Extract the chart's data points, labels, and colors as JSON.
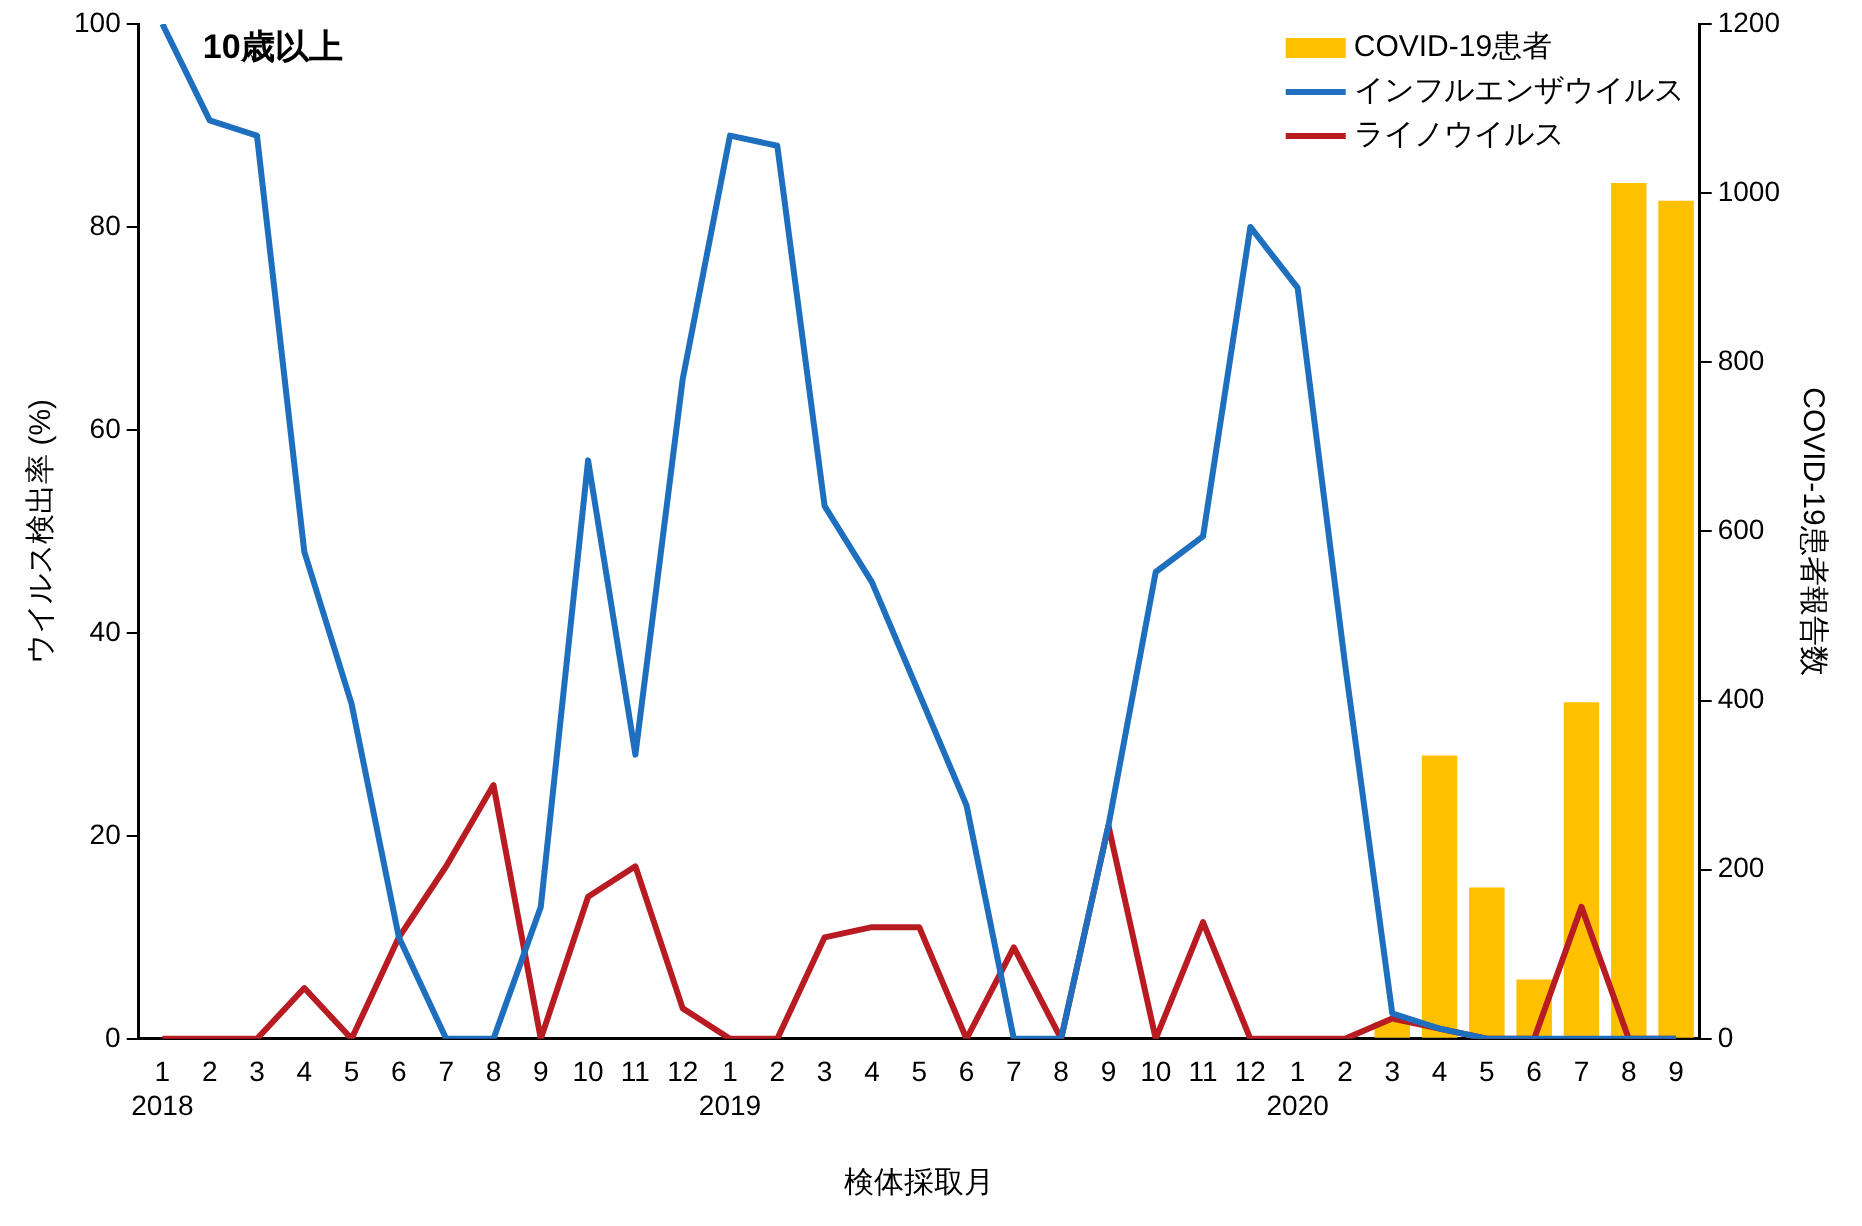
{
  "chart_data": {
    "type": "line",
    "xlabel": "検体採取月",
    "ylabel": "ウイルス検出率 (%)",
    "y2label": "COVID-19患者報告数",
    "annotations": [
      "10歳以上"
    ],
    "categories": [
      "1\n2018",
      "2",
      "3",
      "4",
      "5",
      "6",
      "7",
      "8",
      "9",
      "10",
      "11",
      "12",
      "1\n2019",
      "2",
      "3",
      "4",
      "5",
      "6",
      "7",
      "8",
      "9",
      "10",
      "11",
      "12",
      "1\n2020",
      "2",
      "3",
      "4",
      "5",
      "6",
      "7",
      "8",
      "9"
    ],
    "series": [
      {
        "name": "COVID-19患者",
        "type": "bar",
        "axis": "y2",
        "color": "#ffc000",
        "values": [
          null,
          null,
          null,
          null,
          null,
          null,
          null,
          null,
          null,
          null,
          null,
          null,
          null,
          null,
          null,
          null,
          null,
          null,
          null,
          null,
          null,
          null,
          null,
          null,
          null,
          null,
          20,
          335,
          179,
          70,
          398,
          1012,
          991
        ]
      },
      {
        "name": "インフルエンザウイルス",
        "color": "#1f6fbf",
        "values": [
          100,
          90.5,
          89,
          48,
          33,
          10,
          0,
          0,
          13,
          57,
          28,
          65,
          89,
          88,
          52.5,
          45,
          34,
          23,
          0,
          0,
          21,
          46,
          49.5,
          80,
          74,
          37,
          2.5,
          1,
          0,
          0,
          0,
          0,
          0
        ]
      },
      {
        "name": "ライノウイルス",
        "color": "#b81c22",
        "values": [
          0,
          0,
          0,
          5,
          0,
          10,
          17,
          25,
          0,
          14,
          17,
          3,
          0,
          0,
          10,
          11,
          11,
          0,
          9,
          0,
          21,
          0,
          11.5,
          0,
          0,
          0,
          2,
          1,
          0,
          0,
          13,
          0,
          0
        ]
      }
    ],
    "ylim": [
      0,
      100
    ],
    "yticks": [
      0,
      20,
      40,
      60,
      80,
      100
    ],
    "y2lim": [
      0,
      1200
    ],
    "y2ticks": [
      0,
      200,
      400,
      600,
      800,
      1000,
      1200
    ],
    "grid": false,
    "legend": "top right",
    "marker": "none"
  }
}
